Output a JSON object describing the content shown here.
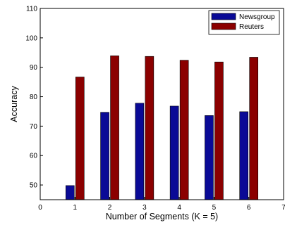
{
  "chart_data": {
    "type": "bar",
    "categories": [
      "1",
      "2",
      "3",
      "4",
      "5",
      "6"
    ],
    "x": [
      1,
      2,
      3,
      4,
      5,
      6
    ],
    "series": [
      {
        "name": "Newsgroup",
        "values": [
          49.8,
          74.7,
          77.8,
          76.8,
          73.6,
          74.9
        ],
        "color": "#0a0a96"
      },
      {
        "name": "Reuters",
        "values": [
          86.7,
          93.9,
          93.7,
          92.4,
          91.8,
          93.4
        ],
        "color": "#8b0000"
      }
    ],
    "xlabel": "Number of Segments (K = 5)",
    "ylabel": "Accuracy",
    "xlim": [
      0,
      7
    ],
    "ylim": [
      45,
      110
    ],
    "xticks": [
      "0",
      "1",
      "2",
      "3",
      "4",
      "5",
      "6",
      "7"
    ],
    "yticks": [
      "50",
      "60",
      "70",
      "80",
      "90",
      "100",
      "110"
    ],
    "grid": false,
    "legend_position": "top-right"
  }
}
